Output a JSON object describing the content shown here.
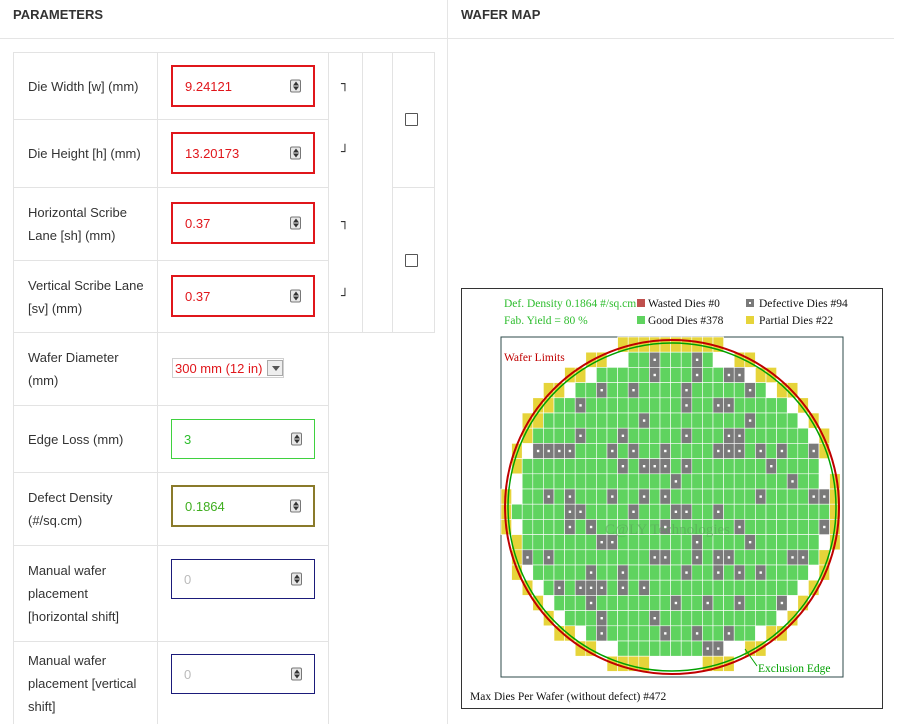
{
  "sections": {
    "parameters": "PARAMETERS",
    "wafer_map": "WAFER MAP"
  },
  "fields": {
    "die_width": {
      "label": "Die Width [w] (mm)",
      "value": "9.24121"
    },
    "die_height": {
      "label": "Die Height [h] (mm)",
      "value": "13.20173"
    },
    "horizontal_scribe": {
      "label": "Horizontal Scribe Lane [sh] (mm)",
      "value": "0.37"
    },
    "vertical_scribe": {
      "label": "Vertical Scribe Lane [sv] (mm)",
      "value": "0.37"
    },
    "wafer_diameter": {
      "label": "Wafer Diameter (mm)",
      "value": "300 mm (12 in)"
    },
    "edge_loss": {
      "label": "Edge Loss (mm)",
      "value": "3"
    },
    "defect_density": {
      "label": "Defect Density (#/sq.cm)",
      "value": "0.1864"
    },
    "h_shift": {
      "label": "Manual wafer placement [horizontal shift]",
      "placeholder": "0"
    },
    "v_shift": {
      "label": "Manual wafer placement [vertical shift]",
      "placeholder": "0"
    }
  },
  "brackets": {
    "top": "┐",
    "bottom": "┘"
  },
  "wafer": {
    "legend": {
      "def_density": "Def. Density 0.1864 #/sq.cm",
      "fab_yield": "Fab. Yield = 80 %",
      "wasted": "Wasted Dies  #0",
      "good": "Good Dies #378",
      "defective": "Defective Dies  #94",
      "partial": "Partial Dies #22"
    },
    "wafer_limits": "Wafer Limits",
    "exclusion_edge": "Exclusion Edge",
    "watermark": "C@LY Technologies",
    "max_dies": "Max Dies Per Wafer (without defect) #472",
    "colors": {
      "good": "#5fd35f",
      "defective": "#7a7a7a",
      "partial": "#e6d43a",
      "wasted": "#c0504d",
      "limit": "#c00000",
      "exclusion": "#00a000"
    }
  }
}
